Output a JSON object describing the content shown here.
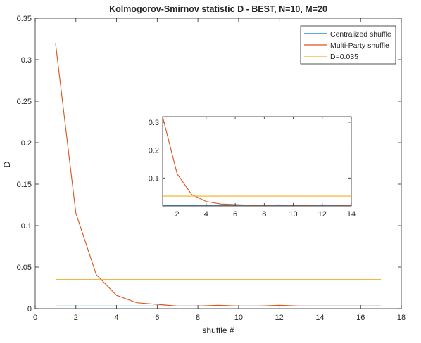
{
  "chart_data": [
    {
      "type": "line",
      "title": "Kolmogorov-Smirnov statistic D - BEST, N=10, M=20",
      "xlabel": "shuffle #",
      "ylabel": "D",
      "xlim": [
        0,
        18
      ],
      "ylim": [
        0,
        0.35
      ],
      "xticks": [
        0,
        2,
        4,
        6,
        8,
        10,
        12,
        14,
        16,
        18
      ],
      "yticks": [
        0,
        0.05,
        0.1,
        0.15,
        0.2,
        0.25,
        0.3,
        0.35
      ],
      "xtick_labels": [
        "0",
        "2",
        "4",
        "6",
        "8",
        "10",
        "12",
        "14",
        "16",
        "18"
      ],
      "ytick_labels": [
        "0",
        "0.05",
        "0.1",
        "0.15",
        "0.2",
        "0.25",
        "0.3",
        "0.35"
      ],
      "grid": false,
      "legend_position": "top-right",
      "x": [
        1,
        2,
        3,
        4,
        5,
        6,
        7,
        8,
        9,
        10,
        11,
        12,
        13,
        14,
        15,
        16,
        17
      ],
      "series": [
        {
          "name": "Centralized shuffle",
          "color": "#0072BD",
          "values": [
            0.003,
            0.003,
            0.003,
            0.003,
            0.003,
            0.003,
            0.003,
            0.003,
            0.003,
            0.003,
            0.003,
            0.003,
            0.003,
            0.003,
            0.003,
            0.003,
            0.003
          ]
        },
        {
          "name": "Multi-Party shuffle",
          "color": "#D95319",
          "values": [
            0.32,
            0.115,
            0.041,
            0.016,
            0.007,
            0.005,
            0.003,
            0.003,
            0.004,
            0.003,
            0.003,
            0.004,
            0.003,
            0.003,
            0.003,
            0.003,
            0.003
          ]
        },
        {
          "name": "D=0.035",
          "color": "#EDB120",
          "values": [
            0.035,
            0.035,
            0.035,
            0.035,
            0.035,
            0.035,
            0.035,
            0.035,
            0.035,
            0.035,
            0.035,
            0.035,
            0.035,
            0.035,
            0.035,
            0.035,
            0.035
          ]
        }
      ]
    },
    {
      "type": "line",
      "title": "",
      "xlabel": "",
      "ylabel": "",
      "xlim": [
        1,
        14
      ],
      "ylim": [
        0,
        0.32
      ],
      "xticks": [
        2,
        4,
        6,
        8,
        10,
        12,
        14
      ],
      "yticks": [
        0.1,
        0.2,
        0.3
      ],
      "xtick_labels": [
        "2",
        "4",
        "6",
        "8",
        "10",
        "12",
        "14"
      ],
      "ytick_labels": [
        "0.1",
        "0.2",
        "0.3"
      ],
      "grid": false,
      "x": [
        1,
        2,
        3,
        4,
        5,
        6,
        7,
        8,
        9,
        10,
        11,
        12,
        13,
        14
      ],
      "series": [
        {
          "color": "#0072BD",
          "values": [
            0.003,
            0.003,
            0.003,
            0.003,
            0.003,
            0.003,
            0.003,
            0.003,
            0.003,
            0.003,
            0.003,
            0.003,
            0.003,
            0.003
          ]
        },
        {
          "color": "#D95319",
          "values": [
            0.32,
            0.115,
            0.041,
            0.016,
            0.007,
            0.005,
            0.003,
            0.003,
            0.004,
            0.003,
            0.003,
            0.004,
            0.003,
            0.003
          ]
        },
        {
          "color": "#EDB120",
          "values": [
            0.035,
            0.035,
            0.035,
            0.035,
            0.035,
            0.035,
            0.035,
            0.035,
            0.035,
            0.035,
            0.035,
            0.035,
            0.035,
            0.035
          ]
        }
      ]
    }
  ]
}
